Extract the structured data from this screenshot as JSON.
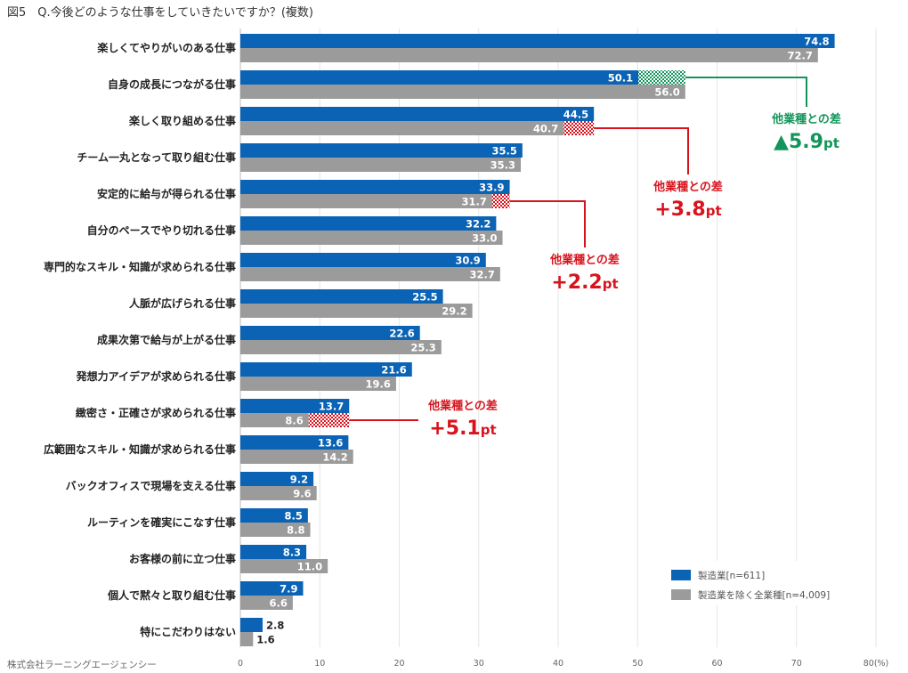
{
  "chart_data": {
    "type": "bar",
    "orientation": "horizontal",
    "title": "図5　Q.今後どのような仕事をしていきたいですか？(複数)",
    "source": "株式会社ラーニングエージェンシー",
    "categories": [
      "楽しくてやりがいのある仕事",
      "自身の成長につながる仕事",
      "楽しく取り組める仕事",
      "チーム一丸となって取り組む仕事",
      "安定的に給与が得られる仕事",
      "自分のペースでやり切れる仕事",
      "専門的なスキル・知識が求められる仕事",
      "人脈が広げられる仕事",
      "成果次第で給与が上がる仕事",
      "発想力アイデアが求められる仕事",
      "緻密さ・正確さが求められる仕事",
      "広範囲なスキル・知識が求められる仕事",
      "バックオフィスで現場を支える仕事",
      "ルーティンを確実にこなす仕事",
      "お客様の前に立つ仕事",
      "個人で黙々と取り組む仕事",
      "特にこだわりはない"
    ],
    "series": [
      {
        "name": "製造業[n=611]",
        "color": "#0B63B5",
        "values": [
          74.8,
          50.1,
          44.5,
          35.5,
          33.9,
          32.2,
          30.9,
          25.5,
          22.6,
          21.6,
          13.7,
          13.6,
          9.2,
          8.5,
          8.3,
          7.9,
          2.8
        ]
      },
      {
        "name": "製造業を除く全業種[n=4,009]",
        "color": "#9B9B9B",
        "values": [
          72.7,
          56.0,
          40.7,
          35.3,
          31.7,
          33.0,
          32.7,
          29.2,
          25.3,
          19.6,
          8.6,
          14.2,
          9.6,
          8.8,
          11.0,
          6.6,
          1.6
        ]
      }
    ],
    "x_ticks": [
      "0",
      "10",
      "20",
      "30",
      "40",
      "50",
      "60",
      "70",
      "80(%)"
    ],
    "xlim": [
      0,
      80
    ],
    "annotations": [
      {
        "category_index": 1,
        "title": "他業種との差",
        "value": "▲5.9",
        "unit": "pt",
        "color": "#12955A",
        "hatch": "green"
      },
      {
        "category_index": 2,
        "title": "他業種との差",
        "value": "+3.8",
        "unit": "pt",
        "color": "#D7141E",
        "hatch": "red"
      },
      {
        "category_index": 4,
        "title": "他業種との差",
        "value": "+2.2",
        "unit": "pt",
        "color": "#D7141E",
        "hatch": "red"
      },
      {
        "category_index": 10,
        "title": "他業種との差",
        "value": "+5.1",
        "unit": "pt",
        "color": "#D7141E",
        "hatch": "red"
      }
    ],
    "legend_position": "bottom-right"
  }
}
